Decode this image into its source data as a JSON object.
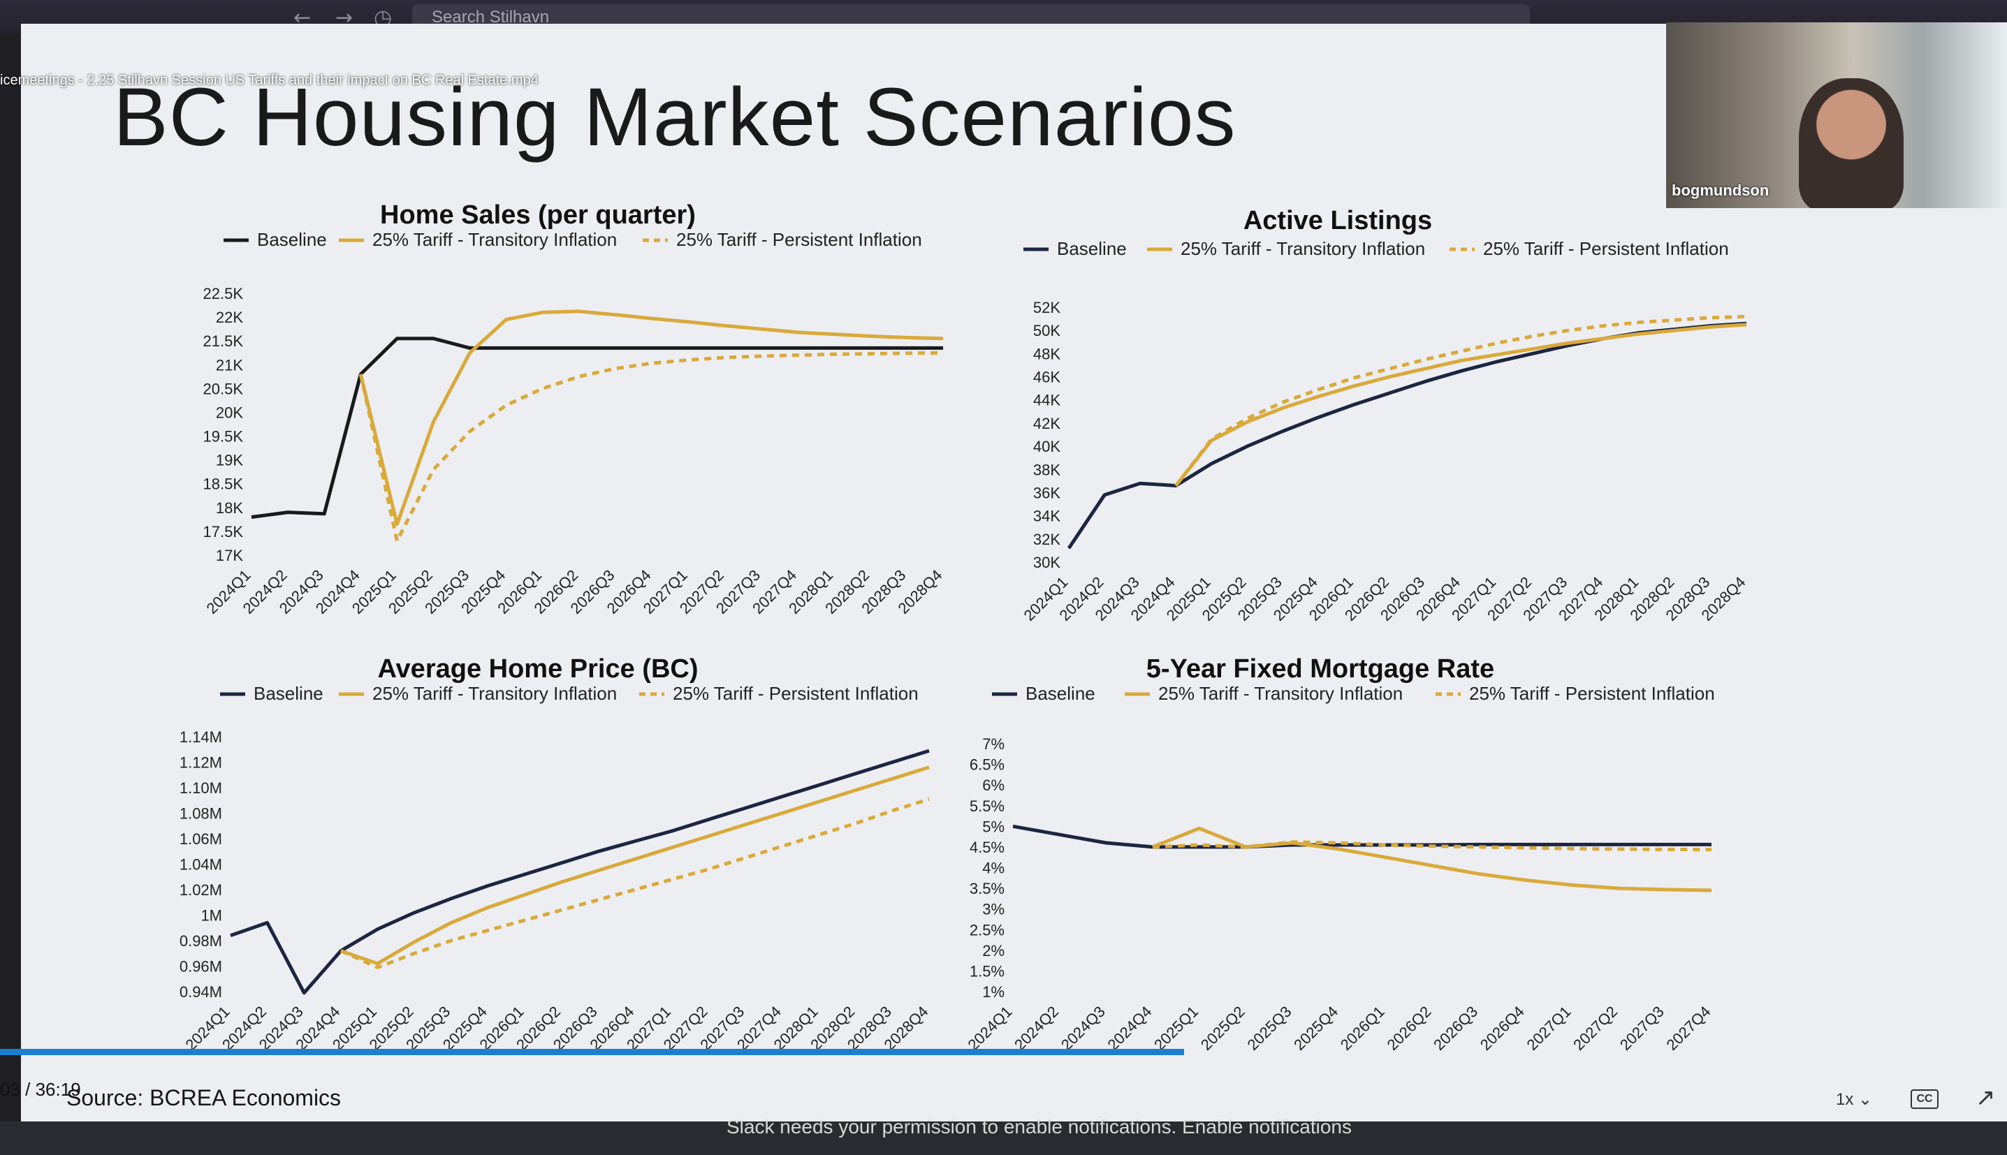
{
  "topbar": {
    "search_placeholder": "Search Stilhavn",
    "back_icon": "arrow-left-icon",
    "forward_icon": "arrow-right-icon",
    "history_icon": "clock-icon"
  },
  "video": {
    "filename": "icemeetings  - 2.25 Stilhavn Session  US Tariffs and their impact on BC Real Estate.mp4",
    "time": "03 / 36:19",
    "speed": "1x",
    "cc_label": "CC",
    "progress_fraction": 0.59
  },
  "webcam": {
    "name": "bogmundson"
  },
  "slide": {
    "title": "BC Housing Market Scenarios",
    "source": "Source: BCREA Economics"
  },
  "notification": {
    "text": "Slack needs your permission to enable notifications. Enable notifications"
  },
  "colors": {
    "baseline": "#1c2541",
    "tariff": "#d9a93a",
    "accent_progress": "#1a7fd0"
  },
  "chart_data": [
    {
      "type": "line",
      "title": "Home Sales (per quarter)",
      "x": [
        "2024Q1",
        "2024Q2",
        "2024Q3",
        "2024Q4",
        "2025Q1",
        "2025Q2",
        "2025Q3",
        "2025Q4",
        "2026Q1",
        "2026Q2",
        "2026Q3",
        "2026Q4",
        "2027Q1",
        "2027Q2",
        "2027Q3",
        "2027Q4",
        "2028Q1",
        "2028Q2",
        "2028Q3",
        "2028Q4"
      ],
      "ylim": [
        17000,
        22500
      ],
      "yticks": [
        "17K",
        "17.5K",
        "18K",
        "18.5K",
        "19K",
        "19.5K",
        "20K",
        "20.5K",
        "21K",
        "21.5K",
        "22K",
        "22.5K"
      ],
      "series": [
        {
          "name": "Baseline",
          "style": "solid",
          "color": "#1a1a1a",
          "values": [
            17800,
            17900,
            17870,
            20800,
            21550,
            21550,
            21350,
            21350,
            21350,
            21350,
            21350,
            21350,
            21350,
            21350,
            21350,
            21350,
            21350,
            21350,
            21350,
            21350
          ]
        },
        {
          "name": "25% Tariff - Transitory Inflation",
          "style": "solid",
          "color": "#d9a93a",
          "values": [
            null,
            null,
            null,
            20800,
            17650,
            19800,
            21250,
            21950,
            22100,
            22120,
            22050,
            21970,
            21900,
            21820,
            21750,
            21680,
            21640,
            21600,
            21570,
            21550
          ]
        },
        {
          "name": "25% Tariff - Persistent Inflation",
          "style": "dashed",
          "color": "#d9a93a",
          "values": [
            null,
            null,
            null,
            20800,
            17300,
            18800,
            19600,
            20150,
            20500,
            20750,
            20920,
            21030,
            21100,
            21150,
            21180,
            21200,
            21220,
            21230,
            21240,
            21250
          ]
        }
      ]
    },
    {
      "type": "line",
      "title": "Active Listings",
      "x": [
        "2024Q1",
        "2024Q2",
        "2024Q3",
        "2024Q4",
        "2025Q1",
        "2025Q2",
        "2025Q3",
        "2025Q4",
        "2026Q1",
        "2026Q2",
        "2026Q3",
        "2026Q4",
        "2027Q1",
        "2027Q2",
        "2027Q3",
        "2027Q4",
        "2028Q1",
        "2028Q2",
        "2028Q3",
        "2028Q4"
      ],
      "ylim": [
        30000,
        52000
      ],
      "yticks": [
        "30K",
        "32K",
        "34K",
        "36K",
        "38K",
        "40K",
        "42K",
        "44K",
        "46K",
        "48K",
        "50K",
        "52K"
      ],
      "series": [
        {
          "name": "Baseline",
          "style": "solid",
          "color": "#1c2541",
          "values": [
            31200,
            35800,
            36800,
            36600,
            38500,
            40000,
            41300,
            42500,
            43600,
            44600,
            45600,
            46500,
            47300,
            48000,
            48700,
            49300,
            49800,
            50100,
            50400,
            50600
          ]
        },
        {
          "name": "25% Tariff - Transitory Inflation",
          "style": "solid",
          "color": "#d9a93a",
          "values": [
            null,
            null,
            null,
            36600,
            40500,
            42100,
            43300,
            44300,
            45200,
            46000,
            46700,
            47400,
            47900,
            48400,
            48900,
            49300,
            49700,
            50000,
            50300,
            50500
          ]
        },
        {
          "name": "25% Tariff - Persistent Inflation",
          "style": "dashed",
          "color": "#d9a93a",
          "values": [
            null,
            null,
            null,
            36600,
            40600,
            42400,
            43800,
            44900,
            45900,
            46700,
            47500,
            48200,
            48900,
            49500,
            50000,
            50400,
            50700,
            50900,
            51100,
            51200
          ]
        }
      ]
    },
    {
      "type": "line",
      "title": "Average Home Price (BC)",
      "x": [
        "2024Q1",
        "2024Q2",
        "2024Q3",
        "2024Q4",
        "2025Q1",
        "2025Q2",
        "2025Q3",
        "2025Q4",
        "2026Q1",
        "2026Q2",
        "2026Q3",
        "2026Q4",
        "2027Q1",
        "2027Q2",
        "2027Q3",
        "2027Q4",
        "2028Q1",
        "2028Q2",
        "2028Q3",
        "2028Q4"
      ],
      "ylim": [
        940000,
        1140000
      ],
      "yticks": [
        "0.94M",
        "0.96M",
        "0.98M",
        "1M",
        "1.02M",
        "1.04M",
        "1.06M",
        "1.08M",
        "1.10M",
        "1.12M",
        "1.14M"
      ],
      "series": [
        {
          "name": "Baseline",
          "style": "solid",
          "color": "#1c2541",
          "values": [
            984000,
            994000,
            939000,
            972000,
            989000,
            1002000,
            1013000,
            1023000,
            1032000,
            1041000,
            1050000,
            1058000,
            1066000,
            1075000,
            1084000,
            1093000,
            1102000,
            1111000,
            1120000,
            1129000
          ]
        },
        {
          "name": "25% Tariff - Transitory Inflation",
          "style": "solid",
          "color": "#d9a93a",
          "values": [
            null,
            null,
            null,
            972000,
            962000,
            979000,
            994000,
            1006000,
            1016000,
            1026000,
            1035000,
            1044000,
            1053000,
            1062000,
            1071000,
            1080000,
            1089000,
            1098000,
            1107000,
            1116000
          ]
        },
        {
          "name": "25% Tariff - Persistent Inflation",
          "style": "dashed",
          "color": "#d9a93a",
          "values": [
            null,
            null,
            null,
            972000,
            959000,
            970000,
            980000,
            988000,
            996000,
            1004000,
            1012000,
            1020000,
            1028000,
            1036000,
            1045000,
            1054000,
            1063000,
            1072000,
            1082000,
            1091000
          ]
        }
      ]
    },
    {
      "type": "line",
      "title": "5-Year Fixed Mortgage Rate",
      "x": [
        "2024Q1",
        "2024Q2",
        "2024Q3",
        "2024Q4",
        "2025Q1",
        "2025Q2",
        "2025Q3",
        "2025Q4",
        "2026Q1",
        "2026Q2",
        "2026Q3",
        "2026Q4",
        "2027Q1",
        "2027Q2",
        "2027Q3",
        "2027Q4"
      ],
      "ylim": [
        1,
        7
      ],
      "yticks": [
        "1%",
        "1.5%",
        "2%",
        "2.5%",
        "3%",
        "3.5%",
        "4%",
        "4.5%",
        "5%",
        "5.5%",
        "6%",
        "6.5%",
        "7%"
      ],
      "series": [
        {
          "name": "Baseline",
          "style": "solid",
          "color": "#1c2541",
          "values": [
            5.0,
            4.8,
            4.6,
            4.5,
            4.5,
            4.5,
            4.55,
            4.55,
            4.55,
            4.55,
            4.56,
            4.56,
            4.56,
            4.56,
            4.56,
            4.56
          ]
        },
        {
          "name": "25% Tariff - Transitory Inflation",
          "style": "solid",
          "color": "#d9a93a",
          "values": [
            null,
            null,
            null,
            4.5,
            4.95,
            4.5,
            4.6,
            4.45,
            4.25,
            4.05,
            3.85,
            3.7,
            3.58,
            3.5,
            3.47,
            3.45
          ]
        },
        {
          "name": "25% Tariff - Persistent Inflation",
          "style": "dashed",
          "color": "#d9a93a",
          "values": [
            null,
            null,
            null,
            4.5,
            4.55,
            4.5,
            4.62,
            4.6,
            4.55,
            4.52,
            4.5,
            4.48,
            4.46,
            4.45,
            4.44,
            4.44
          ]
        }
      ]
    }
  ]
}
